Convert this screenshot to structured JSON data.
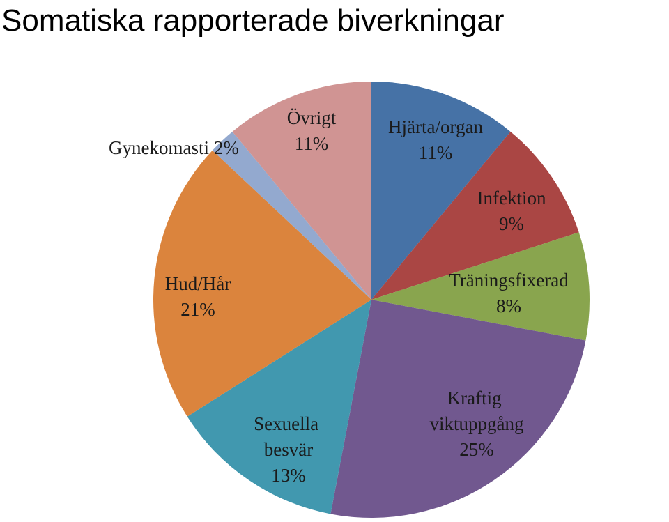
{
  "chart_data": {
    "type": "pie",
    "title": "Somatiska rapporterade biverkningar",
    "categories": [
      "Hjärta/organ",
      "Infektion",
      "Träningsfixerad",
      "Kraftig viktuppgång",
      "Sexuella besvär",
      "Hud/Hår",
      "Gynekomasti",
      "Övrigt"
    ],
    "values": [
      11,
      9,
      8,
      25,
      13,
      21,
      2,
      11
    ],
    "value_labels": [
      "11%",
      "9%",
      "8%",
      "25%",
      "13%",
      "21%",
      "2%",
      "11%"
    ],
    "colors": [
      "#4672a6",
      "#aa4644",
      "#89a54e",
      "#71588f",
      "#4198af",
      "#db843d",
      "#93a9cf",
      "#d09493"
    ]
  }
}
